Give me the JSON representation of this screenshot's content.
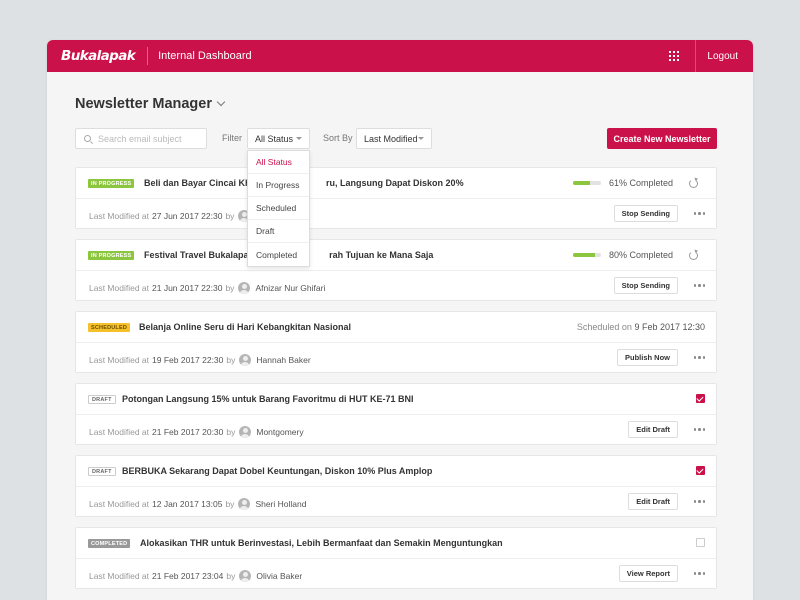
{
  "topbar": {
    "logo": "Bukalapak",
    "title": "Internal Dashboard",
    "logout_label": "Logout",
    "color": "#cb1149"
  },
  "page": {
    "title": "Newsletter Manager"
  },
  "toolbar": {
    "search_placeholder": "Search email subject",
    "filter_label": "Filter",
    "filter_value": "All Status",
    "sort_label": "Sort By",
    "sort_value": "Last Modified",
    "create_label": "Create New Newsletter"
  },
  "dropdown": {
    "options": [
      "All Status",
      "In Progress",
      "Scheduled",
      "Draft",
      "Completed"
    ],
    "selected": "All Status"
  },
  "newsletters": [
    {
      "status": "IN PROGRESS",
      "status_type": "progress",
      "subject": "Beli dan Bayar Cincai Khus",
      "subject_tail": "ru, Langsung Dapat Diskon 20%",
      "progress_pct": 61,
      "progress_label": "61% Completed",
      "modified_prefix": "Last Modified at",
      "modified_date": "27 Jun 2017 22:30",
      "by": "by",
      "author": "",
      "action": "Stop Sending"
    },
    {
      "status": "IN PROGRESS",
      "status_type": "progress",
      "subject": "Festival Travel Bukalapak, T",
      "subject_tail": "rah Tujuan ke Mana Saja",
      "progress_pct": 80,
      "progress_label": "80% Completed",
      "modified_prefix": "Last Modified at",
      "modified_date": "21 Jun 2017 22:30",
      "by": "by",
      "author": "Afnizar Nur Ghifari",
      "action": "Stop Sending"
    },
    {
      "status": "SCHEDULED",
      "status_type": "scheduled",
      "subject": "Belanja Online Seru di Hari Kebangkitan Nasional",
      "subject_tail": "",
      "schedule_label": "Scheduled on",
      "schedule_date": "9 Feb 2017 12:30",
      "modified_prefix": "Last Modified at",
      "modified_date": "19 Feb 2017 22:30",
      "by": "by",
      "author": "Hannah Baker",
      "action": "Publish Now"
    },
    {
      "status": "DRAFT",
      "status_type": "draft",
      "subject": "Potongan Langsung 15% untuk Barang Favoritmu di HUT KE-71 BNI",
      "subject_tail": "",
      "checked": true,
      "modified_prefix": "Last Modified at",
      "modified_date": "21 Feb 2017 20:30",
      "by": "by",
      "author": "Montgomery",
      "action": "Edit Draft"
    },
    {
      "status": "DRAFT",
      "status_type": "draft",
      "subject": "BERBUKA Sekarang Dapat Dobel Keuntungan, Diskon 10% Plus Amplop",
      "subject_tail": "",
      "checked": true,
      "modified_prefix": "Last Modified at",
      "modified_date": "12 Jan 2017 13:05",
      "by": "by",
      "author": "Sheri Holland",
      "action": "Edit Draft"
    },
    {
      "status": "COMPLETED",
      "status_type": "completed",
      "subject": "Alokasikan THR untuk Berinvestasi, Lebih Bermanfaat dan Semakin Menguntungkan",
      "subject_tail": "",
      "checked": false,
      "modified_prefix": "Last Modified at",
      "modified_date": "21 Feb 2017 23:04",
      "by": "by",
      "author": "Olivia Baker",
      "action": "View Report"
    }
  ]
}
